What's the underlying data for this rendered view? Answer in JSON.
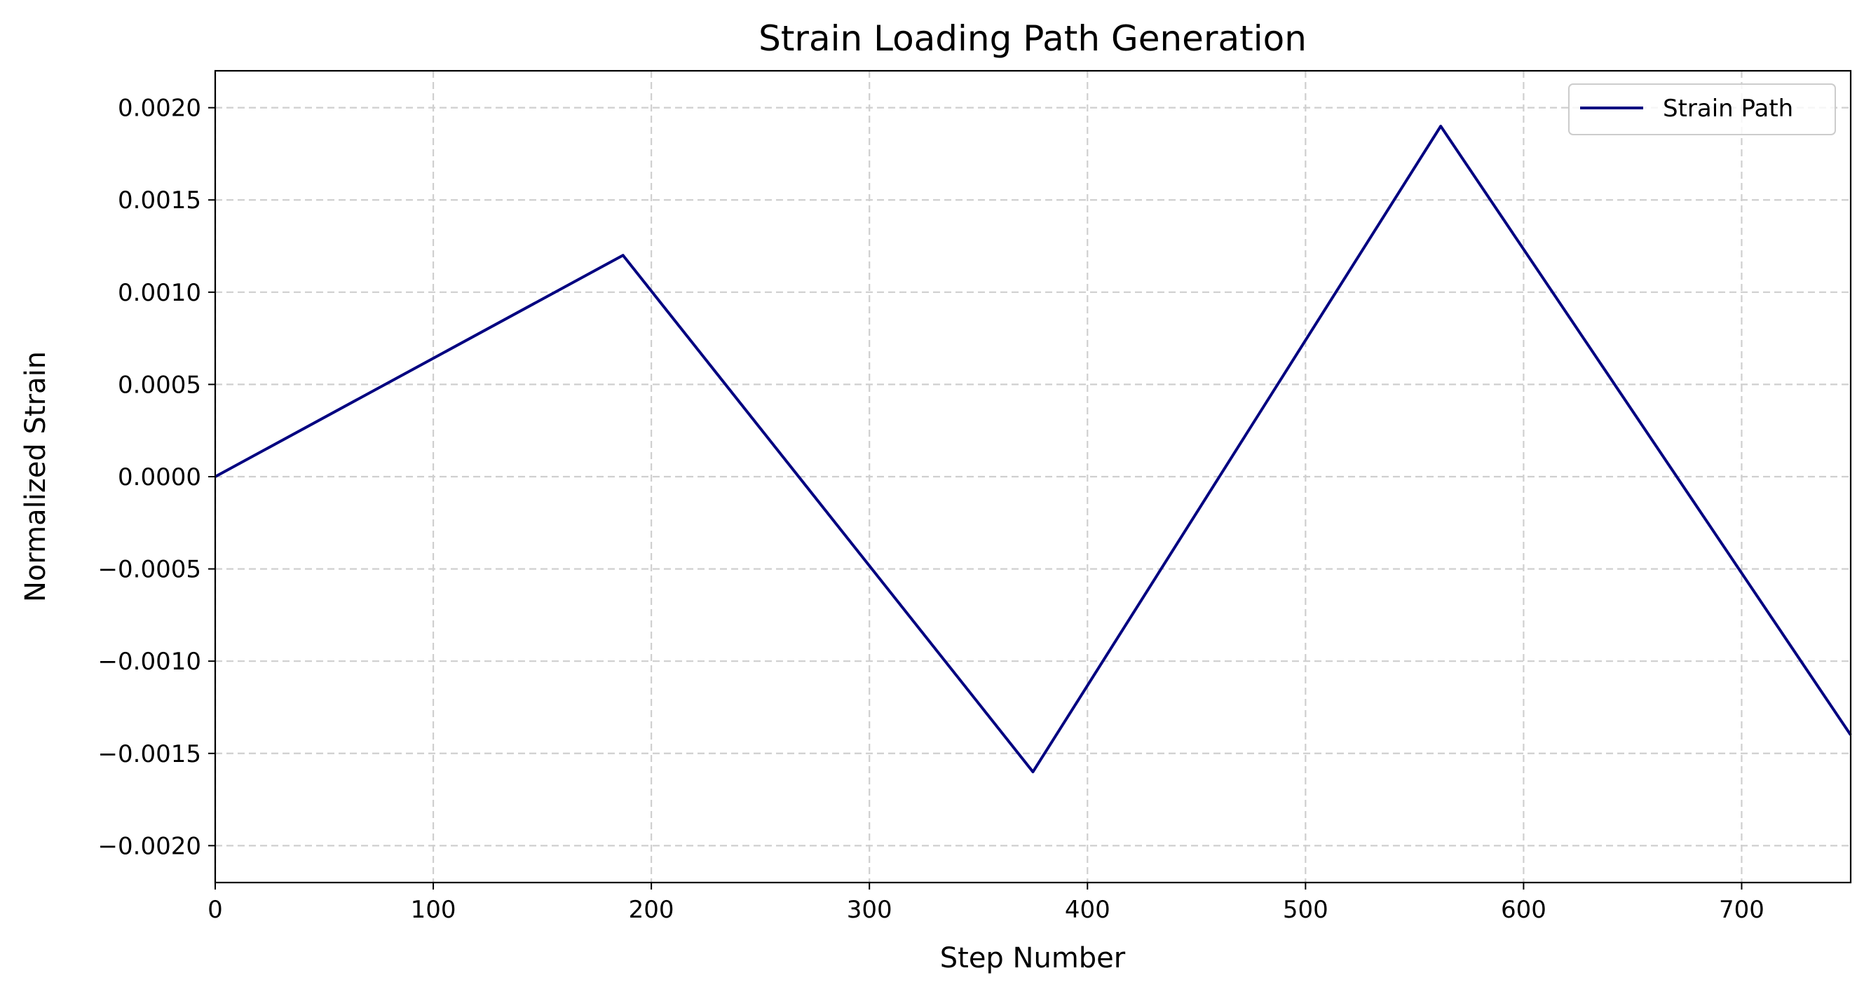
{
  "chart_data": {
    "type": "line",
    "title": "Strain Loading Path Generation",
    "xlabel": "Step Number",
    "ylabel": "Normalized Strain",
    "xlim": [
      0,
      750
    ],
    "ylim": [
      -0.0022,
      0.0022
    ],
    "xticks": [
      0,
      100,
      200,
      300,
      400,
      500,
      600,
      700
    ],
    "xtick_labels": [
      "0",
      "100",
      "200",
      "300",
      "400",
      "500",
      "600",
      "700"
    ],
    "yticks": [
      0.002,
      0.0015,
      0.001,
      0.0005,
      0.0,
      -0.0005,
      -0.001,
      -0.0015,
      -0.002
    ],
    "ytick_labels": [
      "0.0020",
      "0.0015",
      "0.0010",
      "0.0005",
      "0.0000",
      "−0.0005",
      "−0.0010",
      "−0.0015",
      "−0.0020"
    ],
    "grid": true,
    "legend_position": "top-right",
    "series": [
      {
        "name": "Strain Path",
        "color": "#000080",
        "x": [
          0,
          187,
          375,
          562,
          750
        ],
        "y": [
          0.0,
          0.0012,
          -0.0016,
          0.0019,
          -0.0014
        ]
      }
    ]
  }
}
